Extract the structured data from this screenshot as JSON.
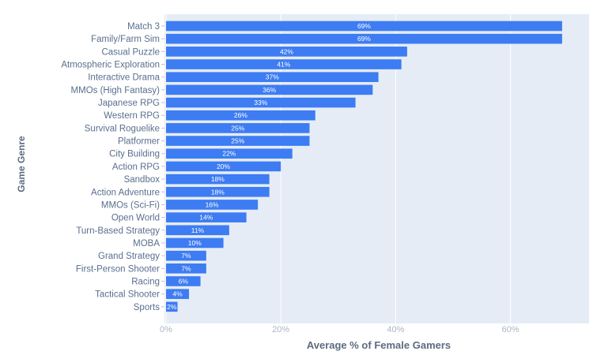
{
  "chart_data": {
    "type": "bar",
    "orientation": "horizontal",
    "xlabel": "Average % of Female Gamers",
    "ylabel": "Game Genre",
    "xlim": [
      0,
      75
    ],
    "x_ticks": [
      {
        "value": 0,
        "label": "0%"
      },
      {
        "value": 20,
        "label": "20%"
      },
      {
        "value": 40,
        "label": "40%"
      },
      {
        "value": 60,
        "label": "60%"
      }
    ],
    "grid": true,
    "plot_background": "#e5ecf6",
    "bar_color": "#3d7cf2",
    "categories": [
      "Match 3",
      "Family/Farm Sim",
      "Casual Puzzle",
      "Atmospheric Exploration",
      "Interactive Drama",
      "MMOs (High Fantasy)",
      "Japanese RPG",
      "Western RPG",
      "Survival Roguelike",
      "Platformer",
      "City Building",
      "Action RPG",
      "Sandbox",
      "Action Adventure",
      "MMOs (Sci-Fi)",
      "Open World",
      "Turn-Based Strategy",
      "MOBA",
      "Grand Strategy",
      "First-Person Shooter",
      "Racing",
      "Tactical Shooter",
      "Sports"
    ],
    "values": [
      69,
      69,
      42,
      41,
      37,
      36,
      33,
      26,
      25,
      25,
      22,
      20,
      18,
      18,
      16,
      14,
      11,
      10,
      7,
      7,
      6,
      4,
      2
    ],
    "value_labels": [
      "69%",
      "69%",
      "42%",
      "41%",
      "37%",
      "36%",
      "33%",
      "26%",
      "25%",
      "25%",
      "22%",
      "20%",
      "18%",
      "18%",
      "16%",
      "14%",
      "11%",
      "10%",
      "7%",
      "7%",
      "6%",
      "4%",
      "2%"
    ]
  }
}
